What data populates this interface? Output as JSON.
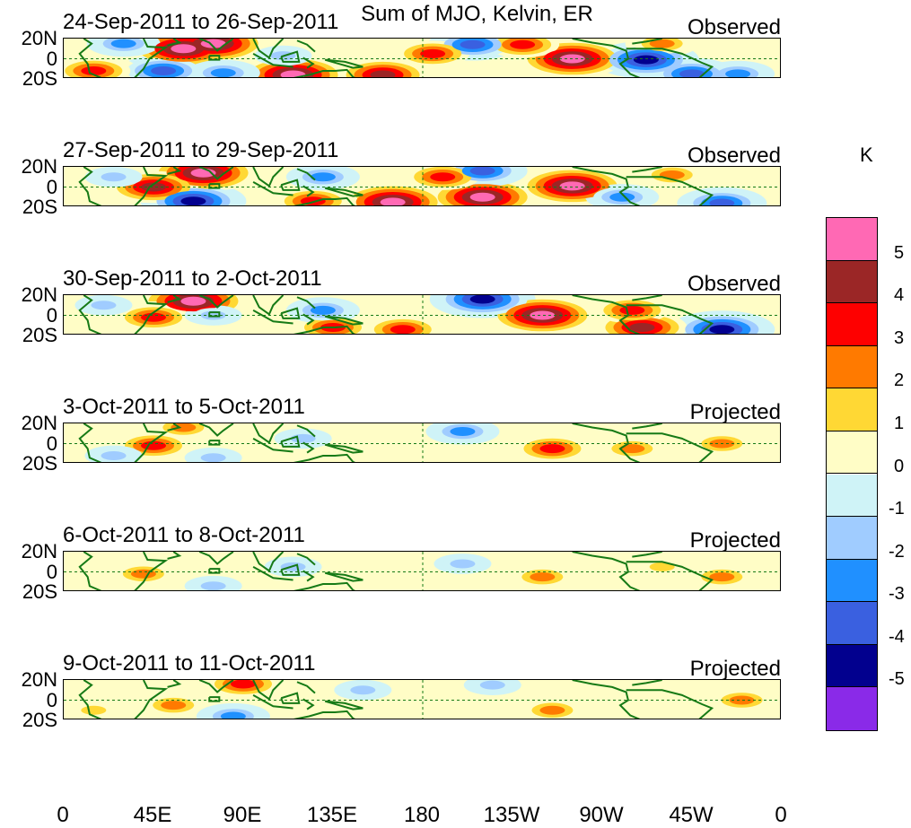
{
  "title": "Sum of MJO, Kelvin, ER",
  "units_label": "K",
  "lat_labels": [
    "20N",
    "0",
    "20S"
  ],
  "lon_labels": [
    "0",
    "45E",
    "90E",
    "135E",
    "180",
    "135W",
    "90W",
    "45W",
    "0"
  ],
  "colorbar": {
    "labels": [
      "5",
      "4",
      "3",
      "2",
      "1",
      "0",
      "-1",
      "-2",
      "-3",
      "-4",
      "-5"
    ],
    "colors": [
      "#ff69b4",
      "#9b2626",
      "#fe0000",
      "#ff7a00",
      "#ffd834",
      "#fffdc6",
      "#cff3f7",
      "#a0ccff",
      "#2090ff",
      "#3a60e0",
      "#02008e",
      "#8a2ae8"
    ]
  },
  "land_color": "#167a16",
  "panels": [
    {
      "date": "24-Sep-2011 to 26-Sep-2011",
      "kind": "Observed"
    },
    {
      "date": "27-Sep-2011 to 29-Sep-2011",
      "kind": "Observed"
    },
    {
      "date": "30-Sep-2011 to 2-Oct-2011",
      "kind": "Observed"
    },
    {
      "date": "3-Oct-2011 to 5-Oct-2011",
      "kind": "Projected"
    },
    {
      "date": "6-Oct-2011 to 8-Oct-2011",
      "kind": "Projected"
    },
    {
      "date": "9-Oct-2011 to 11-Oct-2011",
      "kind": "Projected"
    }
  ],
  "chart_data": {
    "type": "heatmap",
    "title": "Sum of MJO, Kelvin, ER",
    "colorbar_label": "K",
    "x_axis": {
      "range": [
        0,
        360
      ],
      "ticks": [
        "0",
        "45E",
        "90E",
        "135E",
        "180",
        "135W",
        "90W",
        "45W",
        "0"
      ]
    },
    "y_axis": {
      "range": [
        -20,
        20
      ],
      "ticks": [
        "20S",
        "0",
        "20N"
      ]
    },
    "levels": [
      -5,
      -4,
      -3,
      -2,
      -1,
      0,
      1,
      2,
      3,
      4,
      5
    ],
    "panels": [
      {
        "date": "24-Sep-2011 to 26-Sep-2011",
        "kind": "Observed",
        "anomalies": [
          {
            "lon": 30,
            "lat": 15,
            "value": -2.5
          },
          {
            "lon": 15,
            "lat": -12,
            "value": 3.5
          },
          {
            "lon": 60,
            "lat": 10,
            "value": 5.5
          },
          {
            "lon": 75,
            "lat": 15,
            "value": 5
          },
          {
            "lon": 50,
            "lat": -12,
            "value": -3.5
          },
          {
            "lon": 80,
            "lat": -14,
            "value": -3
          },
          {
            "lon": 110,
            "lat": 3,
            "value": -2
          },
          {
            "lon": 115,
            "lat": -16,
            "value": 5.5
          },
          {
            "lon": 160,
            "lat": -16,
            "value": 4
          },
          {
            "lon": 185,
            "lat": 5,
            "value": 3
          },
          {
            "lon": 205,
            "lat": 14,
            "value": -4
          },
          {
            "lon": 230,
            "lat": 14,
            "value": 3
          },
          {
            "lon": 255,
            "lat": 0,
            "value": 5.5
          },
          {
            "lon": 292,
            "lat": -1,
            "value": -5
          },
          {
            "lon": 300,
            "lat": 15,
            "value": 2.5
          },
          {
            "lon": 315,
            "lat": -15,
            "value": -3.5
          },
          {
            "lon": 338,
            "lat": -15,
            "value": -3
          }
        ]
      },
      {
        "date": "27-Sep-2011 to 29-Sep-2011",
        "kind": "Observed",
        "anomalies": [
          {
            "lon": 25,
            "lat": 10,
            "value": -2
          },
          {
            "lon": 45,
            "lat": 0,
            "value": 4
          },
          {
            "lon": 70,
            "lat": 14,
            "value": 5.5
          },
          {
            "lon": 65,
            "lat": -14,
            "value": -5
          },
          {
            "lon": 130,
            "lat": 10,
            "value": -2.5
          },
          {
            "lon": 125,
            "lat": -14,
            "value": 3.5
          },
          {
            "lon": 165,
            "lat": -15,
            "value": 5
          },
          {
            "lon": 190,
            "lat": 10,
            "value": 3
          },
          {
            "lon": 210,
            "lat": 16,
            "value": -4
          },
          {
            "lon": 210,
            "lat": -10,
            "value": 5
          },
          {
            "lon": 255,
            "lat": 1,
            "value": 5.5
          },
          {
            "lon": 280,
            "lat": -10,
            "value": -3
          },
          {
            "lon": 305,
            "lat": 12,
            "value": 2.5
          },
          {
            "lon": 330,
            "lat": -16,
            "value": -4
          }
        ]
      },
      {
        "date": "30-Sep-2011 to 2-Oct-2011",
        "kind": "Observed",
        "anomalies": [
          {
            "lon": 20,
            "lat": 10,
            "value": -2
          },
          {
            "lon": 45,
            "lat": -2,
            "value": 3.5
          },
          {
            "lon": 65,
            "lat": 14,
            "value": 5.5
          },
          {
            "lon": 75,
            "lat": 0,
            "value": -2
          },
          {
            "lon": 130,
            "lat": 5,
            "value": -2.5
          },
          {
            "lon": 135,
            "lat": -12,
            "value": 3
          },
          {
            "lon": 170,
            "lat": -14,
            "value": 3
          },
          {
            "lon": 210,
            "lat": 16,
            "value": -5
          },
          {
            "lon": 240,
            "lat": 0,
            "value": 5.5
          },
          {
            "lon": 285,
            "lat": 5,
            "value": 3
          },
          {
            "lon": 290,
            "lat": -12,
            "value": 4
          },
          {
            "lon": 330,
            "lat": -14,
            "value": -4.5
          }
        ]
      },
      {
        "date": "3-Oct-2011 to 5-Oct-2011",
        "kind": "Projected",
        "anomalies": [
          {
            "lon": 25,
            "lat": -12,
            "value": -2
          },
          {
            "lon": 45,
            "lat": -2,
            "value": 3.5
          },
          {
            "lon": 60,
            "lat": 16,
            "value": 2
          },
          {
            "lon": 75,
            "lat": -14,
            "value": -2
          },
          {
            "lon": 120,
            "lat": 5,
            "value": -1.5
          },
          {
            "lon": 200,
            "lat": 12,
            "value": -2.5
          },
          {
            "lon": 245,
            "lat": -5,
            "value": 3.5
          },
          {
            "lon": 285,
            "lat": -5,
            "value": 2
          },
          {
            "lon": 330,
            "lat": 0,
            "value": 2.5
          }
        ]
      },
      {
        "date": "6-Oct-2011 to 8-Oct-2011",
        "kind": "Projected",
        "anomalies": [
          {
            "lon": 40,
            "lat": -2,
            "value": 2.5
          },
          {
            "lon": 75,
            "lat": -14,
            "value": -2
          },
          {
            "lon": 115,
            "lat": 5,
            "value": -1.5
          },
          {
            "lon": 200,
            "lat": 8,
            "value": -1.5
          },
          {
            "lon": 240,
            "lat": -5,
            "value": 2
          },
          {
            "lon": 300,
            "lat": 5,
            "value": 1.5
          },
          {
            "lon": 330,
            "lat": -5,
            "value": 2
          }
        ]
      },
      {
        "date": "9-Oct-2011 to 11-Oct-2011",
        "kind": "Projected",
        "anomalies": [
          {
            "lon": 15,
            "lat": -10,
            "value": 1.5
          },
          {
            "lon": 55,
            "lat": -5,
            "value": 2
          },
          {
            "lon": 90,
            "lat": 16,
            "value": 3
          },
          {
            "lon": 85,
            "lat": -16,
            "value": -3
          },
          {
            "lon": 150,
            "lat": 10,
            "value": -2
          },
          {
            "lon": 215,
            "lat": 15,
            "value": -2
          },
          {
            "lon": 245,
            "lat": -10,
            "value": 2.5
          },
          {
            "lon": 340,
            "lat": 0,
            "value": 2
          }
        ]
      }
    ]
  }
}
